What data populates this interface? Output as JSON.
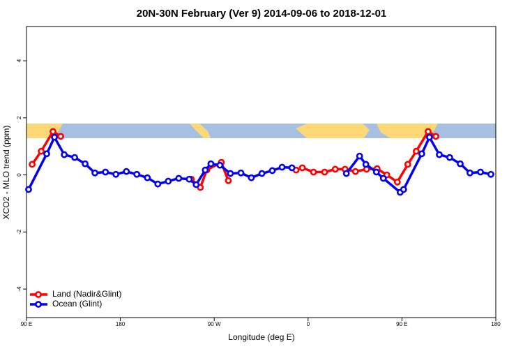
{
  "chart_data": {
    "type": "line",
    "title": "20N-30N February (Ver 9)   2014-09-06 to 2018-12-01",
    "x_label": "Longitude (deg E)",
    "y_label": "XCO2 - MLO trend (ppm)",
    "xlim": [
      90,
      540
    ],
    "xticks": [
      {
        "value": 90,
        "label": "90 E"
      },
      {
        "value": 180,
        "label": "180"
      },
      {
        "value": 270,
        "label": "90 W"
      },
      {
        "value": 360,
        "label": "0"
      },
      {
        "value": 450,
        "label": "90 E"
      },
      {
        "value": 540,
        "label": "180"
      }
    ],
    "ylim": [
      -5.0,
      5.2
    ],
    "yticks": [
      -4,
      -2,
      0,
      2,
      4
    ],
    "legend": "bottomleft",
    "series": [
      {
        "name": "Land (Nadir&Glint)",
        "color": "#ff0000",
        "x": [
          95.4,
          104.1,
          115.4,
          122.8,
          null,
          248,
          256.7,
          262.8,
          276.8,
          283.5,
          null,
          348.5,
          354.5,
          365.2,
          375.9,
          386,
          395.4,
          405.4,
          416.1,
          426.2,
          435.5,
          445.6,
          455.6,
          463.7,
          475.1,
          482.5
        ],
        "values": [
          0.37,
          0.83,
          1.52,
          1.35,
          null,
          -0.15,
          -0.44,
          0.17,
          0.44,
          -0.2,
          null,
          0.17,
          0.25,
          0.1,
          0.1,
          0.2,
          0.2,
          0.12,
          0.2,
          0.22,
          0,
          -0.25,
          0.37,
          0.83,
          1.52,
          1.35
        ]
      },
      {
        "name": "Ocean (Glint)",
        "color": "#0000ee",
        "x": [
          92,
          109.4,
          116.8,
          126.2,
          136.2,
          146.2,
          155.6,
          165.7,
          175.7,
          185.8,
          195.8,
          205.9,
          215.9,
          225.9,
          236,
          246,
          252.7,
          261.4,
          266.8,
          275.5,
          285.5,
          295.6,
          305.6,
          315.7,
          325.7,
          335.1,
          344.5,
          null,
          396.7,
          409.4,
          415.4,
          425.5,
          432.2,
          448.3,
          451.6,
          469,
          476.4,
          485.8,
          495.8,
          505.9,
          515.2,
          525.3,
          535.3
        ],
        "values": [
          -0.51,
          0.74,
          1.32,
          0.71,
          0.61,
          0.39,
          0.07,
          0.1,
          0.02,
          0.12,
          0.02,
          -0.1,
          -0.32,
          -0.22,
          -0.12,
          -0.15,
          -0.34,
          0.17,
          0.39,
          0.34,
          0.05,
          0.07,
          -0.1,
          0.05,
          0.15,
          0.27,
          0.25,
          null,
          0.05,
          0.66,
          0.37,
          0.1,
          -0.12,
          -0.61,
          -0.51,
          0.74,
          1.32,
          0.71,
          0.61,
          0.39,
          0.07,
          0.1,
          0.02
        ]
      }
    ]
  }
}
